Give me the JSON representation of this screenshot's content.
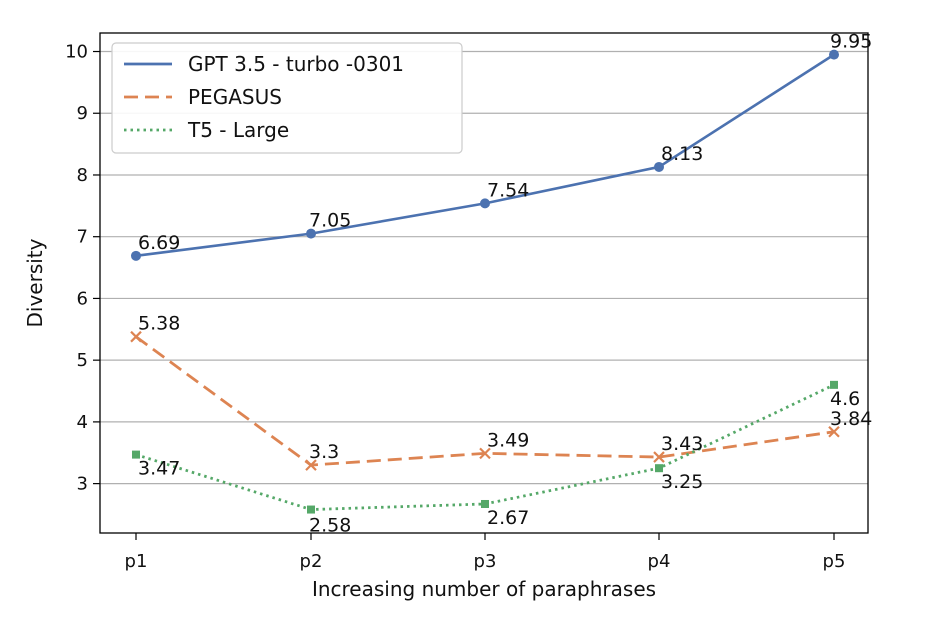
{
  "chart_data": {
    "type": "line",
    "xlabel": "Increasing number of paraphrases",
    "ylabel": "Diversity",
    "categories": [
      "p1",
      "p2",
      "p3",
      "p4",
      "p5"
    ],
    "ylim": [
      2.2,
      10.3
    ],
    "yticks": [
      3,
      4,
      5,
      6,
      7,
      8,
      9,
      10
    ],
    "grid": "horizontal",
    "legend_position": "top-left",
    "series": [
      {
        "name": "GPT 3.5 - turbo -0301",
        "values": [
          6.69,
          7.05,
          7.54,
          8.13,
          9.95
        ],
        "labels": [
          "6.69",
          "7.05",
          "7.54",
          "8.13",
          "9.95"
        ],
        "color": "#4c72b0",
        "line_style": "solid",
        "marker": "circle"
      },
      {
        "name": "PEGASUS",
        "values": [
          5.38,
          3.3,
          3.49,
          3.43,
          3.84
        ],
        "labels": [
          "5.38",
          "3.3",
          "3.49",
          "3.43",
          "3.84"
        ],
        "color": "#dd8452",
        "line_style": "dashed",
        "marker": "x"
      },
      {
        "name": "T5 - Large",
        "values": [
          3.47,
          2.58,
          2.67,
          3.25,
          4.6
        ],
        "labels": [
          "3.47",
          "2.58",
          "2.67",
          "3.25",
          "4.6"
        ],
        "color": "#55a868",
        "line_style": "dotted",
        "marker": "square"
      }
    ]
  }
}
